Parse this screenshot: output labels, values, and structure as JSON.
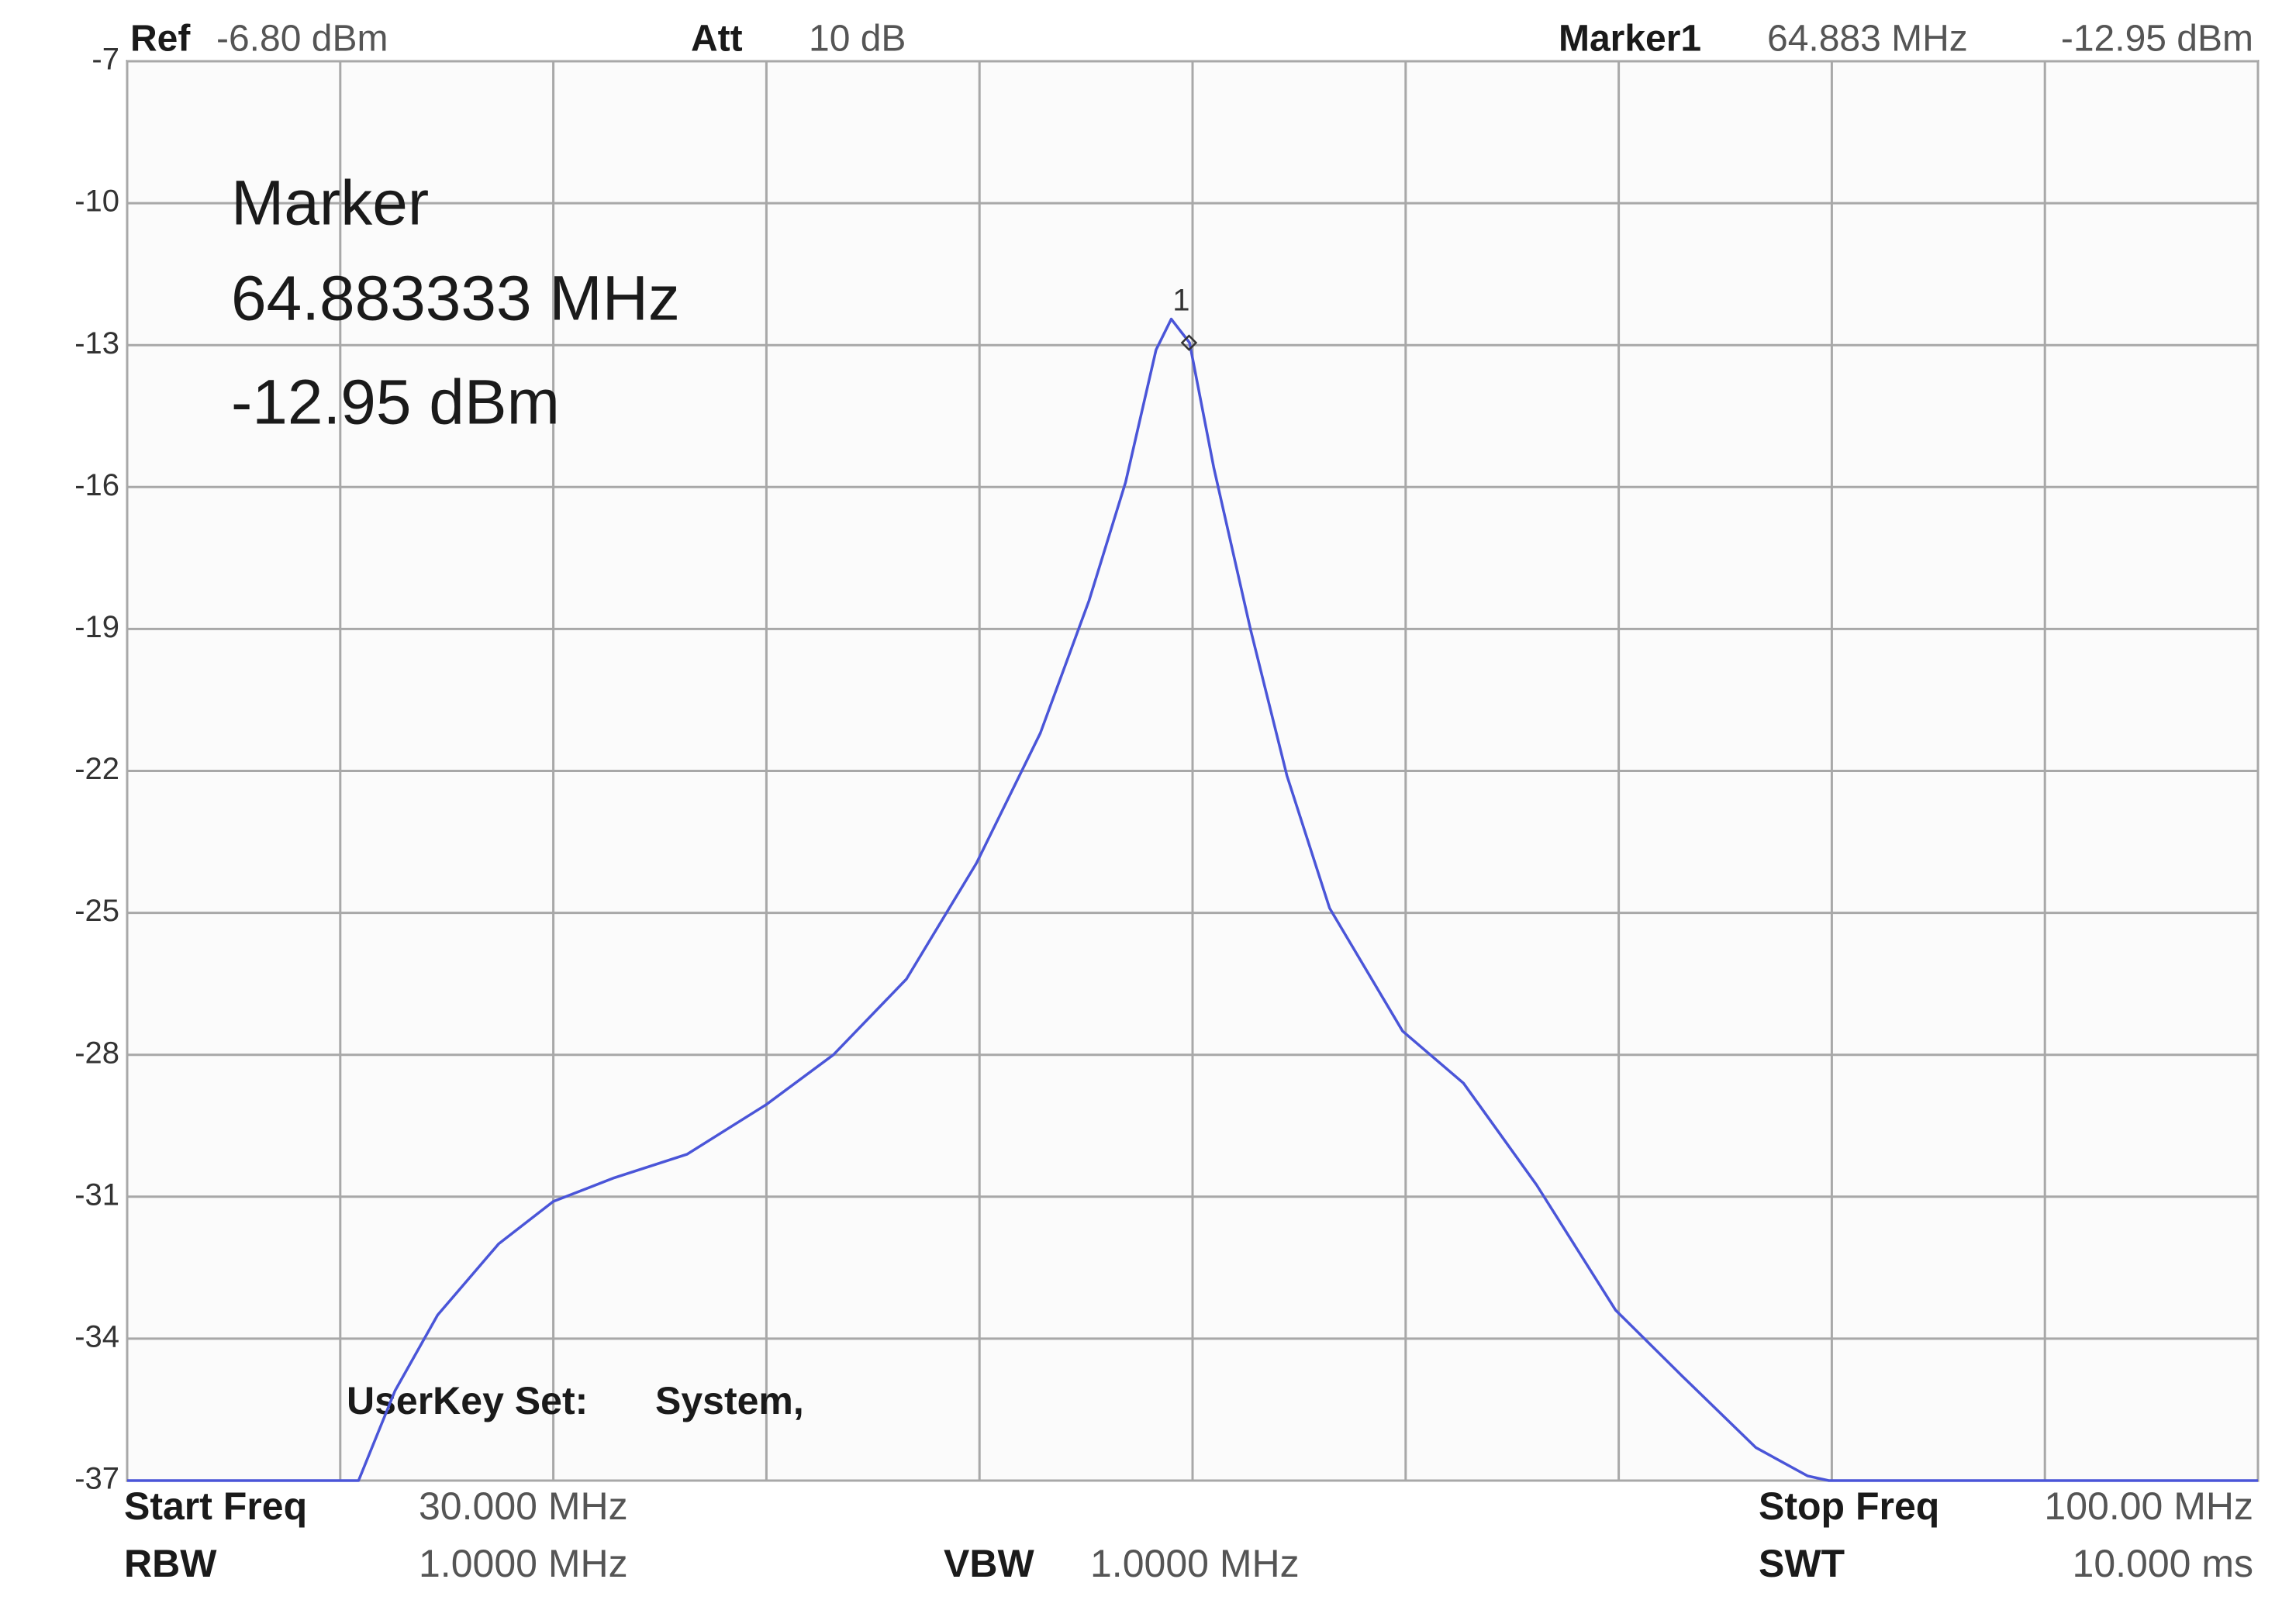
{
  "chart_data": {
    "type": "line",
    "header": {
      "ref_label": "Ref",
      "ref_value": "-6.80 dBm",
      "att_label": "Att",
      "att_value": "10 dB",
      "marker_label": "Marker1",
      "marker_freq": "64.883 MHz",
      "marker_level": "-12.95 dBm"
    },
    "readout": {
      "title": "Marker",
      "frequency": "64.883333 MHz",
      "level": "-12.95 dBm"
    },
    "note": {
      "label": "UserKey Set:",
      "value": "System,"
    },
    "footer": {
      "start_label": "Start Freq",
      "start_value": "30.000 MHz",
      "stop_label": "Stop Freq",
      "stop_value": "100.00 MHz",
      "rbw_label": "RBW",
      "rbw_value": "1.0000 MHz",
      "vbw_label": "VBW",
      "vbw_value": "1.0000 MHz",
      "swt_label": "SWT",
      "swt_value": "10.000 ms"
    },
    "x": [
      30,
      37.6,
      38.8,
      40.2,
      42.2,
      44.0,
      46.0,
      48.4,
      51.0,
      53.2,
      55.6,
      57.9,
      60.0,
      61.6,
      62.8,
      63.8,
      64.3,
      64.9,
      65.7,
      66.9,
      68.1,
      69.5,
      71.9,
      73.9,
      76.3,
      78.9,
      81.1,
      83.5,
      85.2,
      85.9,
      100
    ],
    "series": [
      {
        "color": "#4a55d8",
        "values": [
          -37,
          -37,
          -35.1,
          -33.5,
          -32.0,
          -31.1,
          -30.6,
          -30.1,
          -29.05,
          -28.0,
          -26.4,
          -23.95,
          -21.2,
          -18.4,
          -15.9,
          -13.1,
          -12.45,
          -12.95,
          -15.6,
          -19.0,
          -22.1,
          -24.9,
          -27.5,
          -28.6,
          -30.75,
          -33.4,
          -34.8,
          -36.3,
          -36.9,
          -37,
          -37
        ]
      }
    ],
    "marker": {
      "x": 64.883333,
      "y": -12.95,
      "label": "1"
    },
    "xlim": [
      30,
      100
    ],
    "ylim": [
      -37,
      -7
    ],
    "xticks": [
      30,
      37,
      44,
      51,
      58,
      65,
      72,
      79,
      86,
      93,
      100
    ],
    "yticks": [
      -7,
      -10,
      -13,
      -16,
      -19,
      -22,
      -25,
      -28,
      -31,
      -34,
      -37
    ],
    "grid": true
  }
}
